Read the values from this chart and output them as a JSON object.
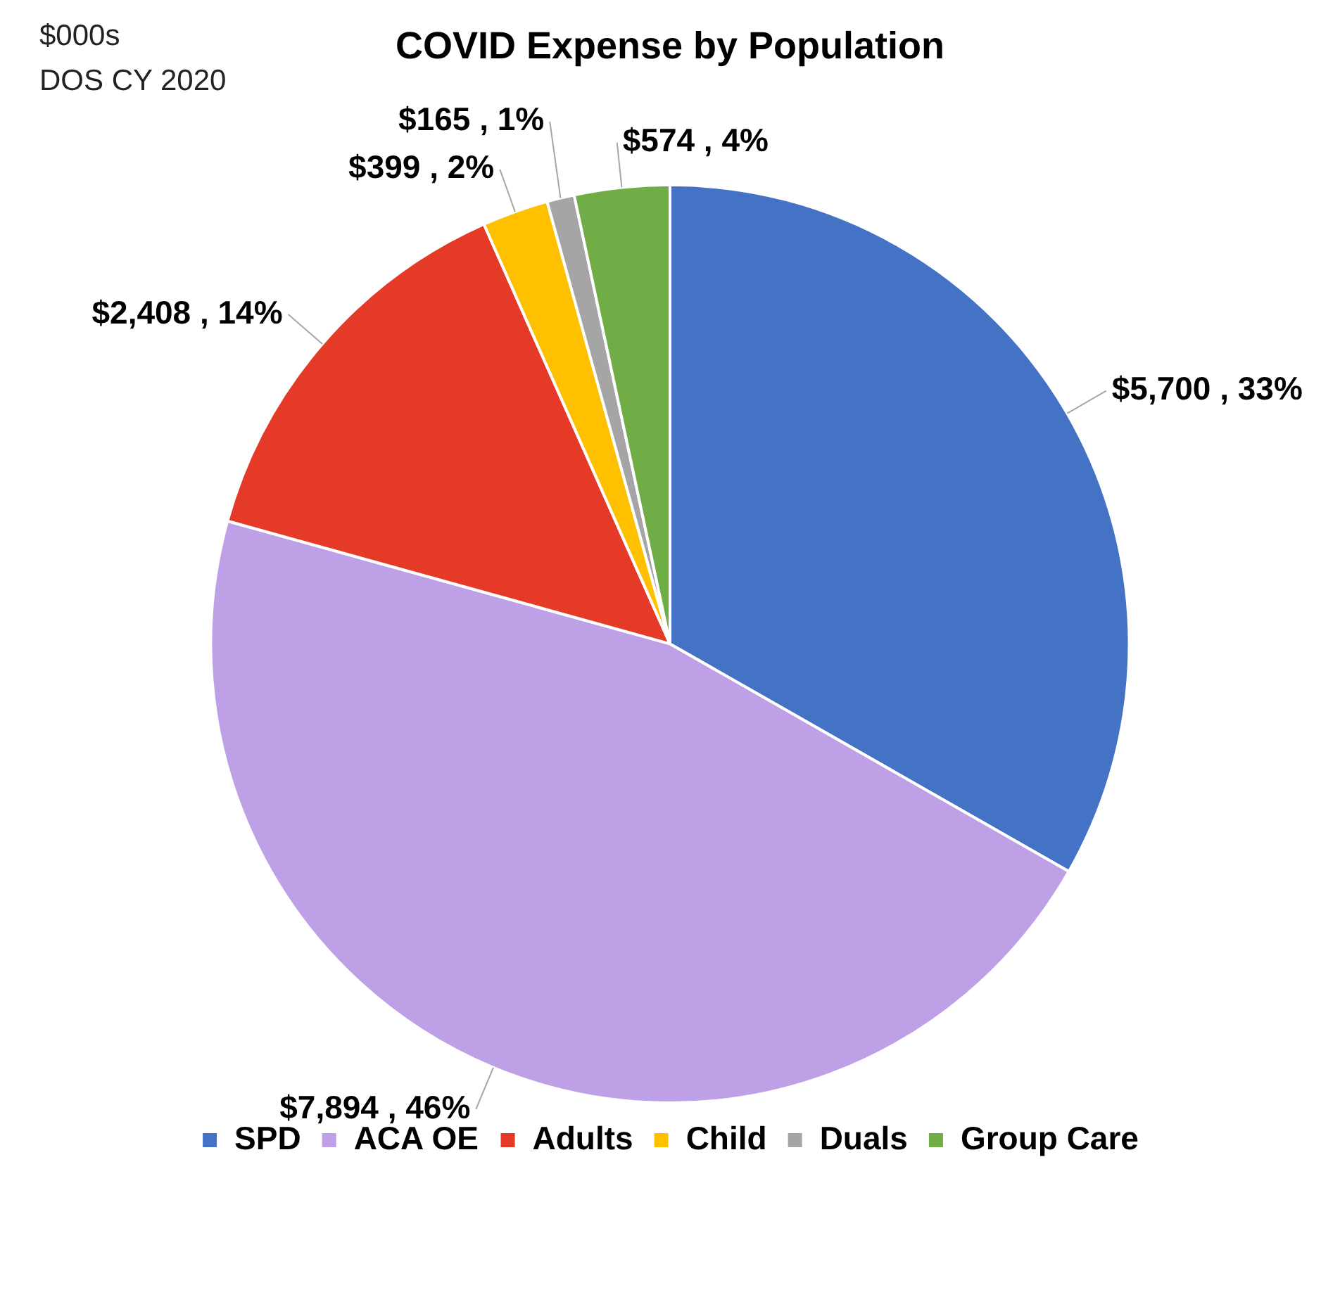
{
  "chart_data": {
    "type": "pie",
    "title": "COVID Expense by Population",
    "annotations": [
      "$000s",
      "DOS CY 2020"
    ],
    "categories": [
      "SPD",
      "ACA OE",
      "Adults",
      "Child",
      "Duals",
      "Group Care"
    ],
    "values": [
      5700,
      7894,
      2408,
      399,
      165,
      574
    ],
    "colors": [
      "#4472c4",
      "#bea0e6",
      "#e53a27",
      "#ffc000",
      "#a5a5a5",
      "#70ad47"
    ],
    "value_labels": [
      "$5,700 , 33%",
      "$7,894 , 46%",
      "$2,408 , 14%",
      "$399 , 2%",
      "$165 , 1%",
      "$574 , 4%"
    ],
    "legend": "bottom"
  }
}
